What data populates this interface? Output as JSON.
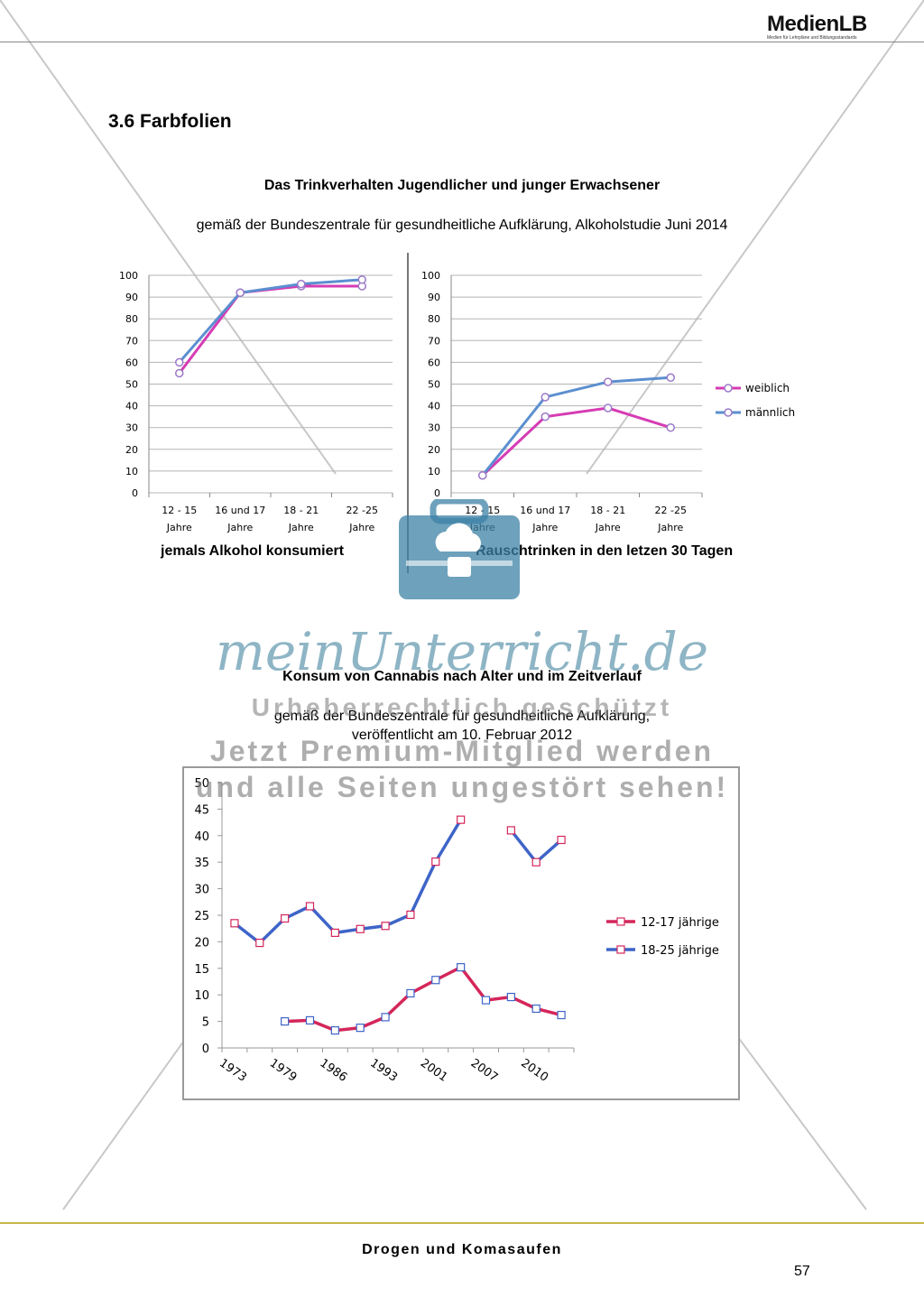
{
  "header": {
    "logo": "MedienLB",
    "logo_subtitle": "Medien für Lehrpläne und Bildungsstandards"
  },
  "section_title": "3.6 Farbfolien",
  "drinking": {
    "title": "Das Trinkverhalten Jugendlicher und junger Erwachsener",
    "subtitle": "gemäß der Bundeszentrale für gesundheitliche Aufklärung, Alkoholstudie Juni 2014"
  },
  "cannabis": {
    "title": "Konsum von Cannabis nach Alter und im Zeitverlauf",
    "subtitle_line1": "gemäß der Bundeszentrale für gesundheitliche Aufklärung,",
    "subtitle_line2": "veröffentlicht am 10. Februar 2012"
  },
  "chart_data": [
    {
      "type": "line",
      "title": "jemals Alkohol konsumiert",
      "categories": [
        [
          "12 - 15",
          "Jahre"
        ],
        [
          "16 und 17",
          "Jahre"
        ],
        [
          "18 - 21",
          "Jahre"
        ],
        [
          "22 -25",
          "Jahre"
        ]
      ],
      "series": [
        {
          "name": "weiblich",
          "color": "#d63cb4",
          "values": [
            55,
            92,
            95,
            95
          ]
        },
        {
          "name": "männlich",
          "color": "#5b8fd0",
          "values": [
            60,
            92,
            96,
            98
          ]
        }
      ],
      "ylim": [
        0,
        100
      ],
      "yticks": [
        "0",
        "10",
        "20",
        "30",
        "40",
        "50",
        "60",
        "70",
        "80",
        "90",
        "100"
      ]
    },
    {
      "type": "line",
      "title": "Rauschtrinken in den letzen 30 Tagen",
      "categories": [
        [
          "12 - 15",
          "Jahre"
        ],
        [
          "16 und 17",
          "Jahre"
        ],
        [
          "18 - 21",
          "Jahre"
        ],
        [
          "22 -25",
          "Jahre"
        ]
      ],
      "series": [
        {
          "name": "weiblich",
          "color": "#d63cb4",
          "values": [
            8,
            35,
            39,
            30
          ]
        },
        {
          "name": "männlich",
          "color": "#5b8fd0",
          "values": [
            8,
            44,
            51,
            53
          ]
        }
      ],
      "ylim": [
        0,
        100
      ],
      "yticks": [
        "0",
        "10",
        "20",
        "30",
        "40",
        "50",
        "60",
        "70",
        "80",
        "90",
        "100"
      ],
      "legend": [
        "weiblich",
        "männlich"
      ]
    },
    {
      "type": "line",
      "title": "Konsum von Cannabis nach Alter und im Zeitverlauf",
      "x": [
        1973,
        1976,
        1979,
        1982,
        1986,
        1989,
        1993,
        1997,
        2001,
        2004,
        2007,
        2008,
        2010,
        2011
      ],
      "xticklabels": [
        "1973",
        "1979",
        "1986",
        "1993",
        "2001",
        "2007",
        "2010"
      ],
      "series": [
        {
          "name": "12-17 jährige",
          "color": "#d4265a",
          "values": [
            null,
            null,
            5,
            5.2,
            3.3,
            3.8,
            5.8,
            10.3,
            12.8,
            15.2,
            9,
            9.6,
            7.4,
            6.2
          ]
        },
        {
          "name": "18-25 jährige",
          "color": "#3e64c8",
          "values": [
            23.5,
            19.8,
            24.4,
            26.7,
            21.7,
            22.4,
            23,
            25.1,
            35.1,
            43,
            null,
            41,
            35,
            39.2
          ]
        }
      ],
      "ylim": [
        0,
        50
      ],
      "yticks": [
        "0",
        "5",
        "10",
        "15",
        "20",
        "25",
        "30",
        "35",
        "40",
        "45",
        "50"
      ]
    }
  ],
  "watermark": {
    "brand": "meinUnterricht.de",
    "line1": "Urheberrechtlich geschützt",
    "line2": "Jetzt Premium-Mitglied werden",
    "line3": "und alle Seiten ungestört sehen!"
  },
  "footer": {
    "title": "Drogen und Komasaufen",
    "page": "57"
  }
}
